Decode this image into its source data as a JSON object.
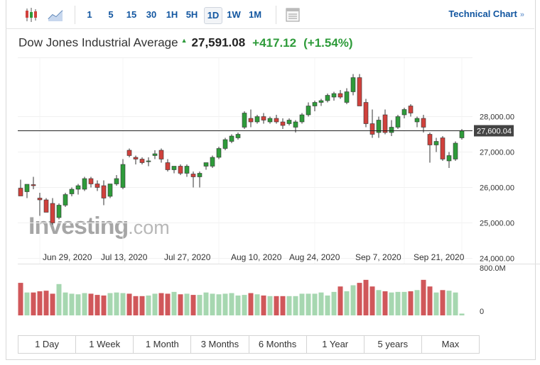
{
  "toolbar": {
    "intervals": [
      "1",
      "5",
      "15",
      "30",
      "1H",
      "5H",
      "1D",
      "1W",
      "1M"
    ],
    "selected_interval": "1D",
    "technical_chart_label": "Technical Chart",
    "technical_chart_chevron": "»"
  },
  "header": {
    "name": "Dow Jones Industrial Average",
    "price": "27,591.08",
    "change": "+417.12",
    "change_pct": "(+1.54%)",
    "up_color": "#2e9b3a",
    "down_color": "#d0413c"
  },
  "watermark": {
    "brand": "Investing",
    "suffix": ".com"
  },
  "chart_data": {
    "type": "candlestick",
    "x_tick_labels": [
      "Jun 29, 2020",
      "Jul 13, 2020",
      "Jul 27, 2020",
      "Aug 10, 2020",
      "Aug 24, 2020",
      "Sep 7, 2020",
      "Sep 21, 2020"
    ],
    "y_tick_labels": [
      "28,000.00",
      "27,000.00",
      "26,000.00",
      "25,000.00",
      "24,000.00"
    ],
    "ylim": [
      23850,
      29650
    ],
    "current_price_label": "27,600.04",
    "current_price": 27600,
    "volume_axis_labels": [
      "800.0M",
      "0"
    ],
    "volume_max": 800,
    "candles": [
      {
        "o": 25980,
        "h": 26220,
        "l": 25800,
        "c": 25760
      },
      {
        "o": 25880,
        "h": 26050,
        "l": 25700,
        "c": 26090
      },
      {
        "o": 26080,
        "h": 26300,
        "l": 25950,
        "c": 26050
      },
      {
        "o": 25700,
        "h": 25850,
        "l": 25200,
        "c": 25650
      },
      {
        "o": 25650,
        "h": 25700,
        "l": 25300,
        "c": 25300
      },
      {
        "o": 25550,
        "h": 25700,
        "l": 24950,
        "c": 25000
      },
      {
        "o": 25150,
        "h": 25550,
        "l": 25100,
        "c": 25500
      },
      {
        "o": 25500,
        "h": 25850,
        "l": 25450,
        "c": 25800
      },
      {
        "o": 25820,
        "h": 26000,
        "l": 25750,
        "c": 25950
      },
      {
        "o": 25950,
        "h": 26100,
        "l": 25800,
        "c": 26050
      },
      {
        "o": 25950,
        "h": 26300,
        "l": 25900,
        "c": 26250
      },
      {
        "o": 26250,
        "h": 26300,
        "l": 26000,
        "c": 26100
      },
      {
        "o": 26100,
        "h": 26200,
        "l": 25900,
        "c": 26000
      },
      {
        "o": 26050,
        "h": 26200,
        "l": 25500,
        "c": 25700
      },
      {
        "o": 25750,
        "h": 26100,
        "l": 25700,
        "c": 26100
      },
      {
        "o": 26100,
        "h": 26350,
        "l": 26050,
        "c": 26250
      },
      {
        "o": 26000,
        "h": 26800,
        "l": 25950,
        "c": 26650
      },
      {
        "o": 27050,
        "h": 27100,
        "l": 26850,
        "c": 26900
      },
      {
        "o": 26850,
        "h": 26900,
        "l": 26650,
        "c": 26800
      },
      {
        "o": 26800,
        "h": 26850,
        "l": 26650,
        "c": 26700
      },
      {
        "o": 26750,
        "h": 26850,
        "l": 26600,
        "c": 26750
      },
      {
        "o": 26900,
        "h": 27050,
        "l": 26800,
        "c": 26950
      },
      {
        "o": 27050,
        "h": 27100,
        "l": 26700,
        "c": 26800
      },
      {
        "o": 26700,
        "h": 26800,
        "l": 26450,
        "c": 26500
      },
      {
        "o": 26500,
        "h": 26600,
        "l": 26400,
        "c": 26600
      },
      {
        "o": 26600,
        "h": 26650,
        "l": 26350,
        "c": 26400
      },
      {
        "o": 26400,
        "h": 26650,
        "l": 26300,
        "c": 26600
      },
      {
        "o": 26380,
        "h": 26450,
        "l": 26000,
        "c": 26300
      },
      {
        "o": 26300,
        "h": 26450,
        "l": 26000,
        "c": 26400
      },
      {
        "o": 26600,
        "h": 26700,
        "l": 26500,
        "c": 26700
      },
      {
        "o": 26600,
        "h": 26900,
        "l": 26550,
        "c": 26850
      },
      {
        "o": 26850,
        "h": 27150,
        "l": 26800,
        "c": 27100
      },
      {
        "o": 27100,
        "h": 27400,
        "l": 27050,
        "c": 27350
      },
      {
        "o": 27300,
        "h": 27500,
        "l": 27250,
        "c": 27450
      },
      {
        "o": 27400,
        "h": 27550,
        "l": 27350,
        "c": 27500
      },
      {
        "o": 27700,
        "h": 28150,
        "l": 27650,
        "c": 28100
      },
      {
        "o": 27950,
        "h": 28200,
        "l": 27700,
        "c": 27850
      },
      {
        "o": 27850,
        "h": 28050,
        "l": 27800,
        "c": 28000
      },
      {
        "o": 28000,
        "h": 28100,
        "l": 27800,
        "c": 27900
      },
      {
        "o": 27850,
        "h": 28000,
        "l": 27800,
        "c": 27950
      },
      {
        "o": 27950,
        "h": 28050,
        "l": 27800,
        "c": 27850
      },
      {
        "o": 27850,
        "h": 27950,
        "l": 27650,
        "c": 27750
      },
      {
        "o": 27800,
        "h": 27950,
        "l": 27750,
        "c": 27900
      },
      {
        "o": 27700,
        "h": 27900,
        "l": 27550,
        "c": 27850
      },
      {
        "o": 27850,
        "h": 28100,
        "l": 27800,
        "c": 28050
      },
      {
        "o": 28050,
        "h": 28400,
        "l": 28000,
        "c": 28300
      },
      {
        "o": 28300,
        "h": 28450,
        "l": 28150,
        "c": 28400
      },
      {
        "o": 28400,
        "h": 28500,
        "l": 28300,
        "c": 28450
      },
      {
        "o": 28450,
        "h": 28650,
        "l": 28400,
        "c": 28600
      },
      {
        "o": 28550,
        "h": 28700,
        "l": 28450,
        "c": 28650
      },
      {
        "o": 28650,
        "h": 28750,
        "l": 28500,
        "c": 28550
      },
      {
        "o": 28400,
        "h": 28800,
        "l": 28350,
        "c": 28700
      },
      {
        "o": 28700,
        "h": 29200,
        "l": 28600,
        "c": 29100
      },
      {
        "o": 29100,
        "h": 29200,
        "l": 28300,
        "c": 28300
      },
      {
        "o": 28400,
        "h": 28500,
        "l": 27700,
        "c": 27800
      },
      {
        "o": 27800,
        "h": 28200,
        "l": 27400,
        "c": 27500
      },
      {
        "o": 27550,
        "h": 28000,
        "l": 27400,
        "c": 27900
      },
      {
        "o": 28050,
        "h": 28200,
        "l": 27500,
        "c": 27550
      },
      {
        "o": 27550,
        "h": 27900,
        "l": 27450,
        "c": 27700
      },
      {
        "o": 27700,
        "h": 28050,
        "l": 27650,
        "c": 28000
      },
      {
        "o": 28050,
        "h": 28250,
        "l": 27950,
        "c": 28200
      },
      {
        "o": 28300,
        "h": 28350,
        "l": 28000,
        "c": 28100
      },
      {
        "o": 27850,
        "h": 28000,
        "l": 27700,
        "c": 27950
      },
      {
        "o": 27950,
        "h": 28050,
        "l": 27550,
        "c": 27700
      },
      {
        "o": 27500,
        "h": 27550,
        "l": 26700,
        "c": 27200
      },
      {
        "o": 27200,
        "h": 27400,
        "l": 27000,
        "c": 27300
      },
      {
        "o": 27400,
        "h": 27450,
        "l": 26750,
        "c": 26800
      },
      {
        "o": 26750,
        "h": 27000,
        "l": 26550,
        "c": 26900
      },
      {
        "o": 26800,
        "h": 27300,
        "l": 26750,
        "c": 27250
      },
      {
        "o": 27400,
        "h": 27650,
        "l": 27350,
        "c": 27600
      }
    ],
    "volumes": [
      540,
      380,
      380,
      400,
      410,
      360,
      520,
      380,
      360,
      350,
      370,
      360,
      340,
      330,
      370,
      380,
      370,
      360,
      320,
      320,
      330,
      360,
      370,
      360,
      390,
      350,
      360,
      340,
      340,
      380,
      360,
      350,
      360,
      370,
      330,
      340,
      370,
      350,
      330,
      320,
      320,
      320,
      320,
      320,
      360,
      360,
      360,
      380,
      330,
      390,
      480,
      400,
      500,
      540,
      590,
      480,
      420,
      400,
      380,
      390,
      390,
      400,
      420,
      590,
      480,
      380,
      420,
      410,
      380,
      30
    ]
  },
  "ranges": [
    "1 Day",
    "1 Week",
    "1 Month",
    "3 Months",
    "6 Months",
    "1 Year",
    "5 years",
    "Max"
  ]
}
